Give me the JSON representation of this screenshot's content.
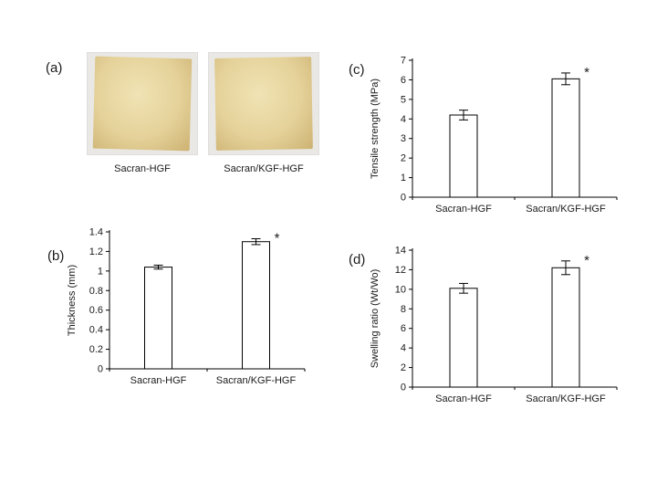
{
  "panels": {
    "a": {
      "label": "(a)",
      "photos": [
        {
          "caption": "Sacran-HGF"
        },
        {
          "caption": "Sacran/KGF-HGF"
        }
      ]
    },
    "b": {
      "label": "(b)"
    },
    "c": {
      "label": "(c)"
    },
    "d": {
      "label": "(d)"
    }
  },
  "colors": {
    "bar_fill": "#ffffff",
    "bar_stroke": "#000000",
    "axis": "#000000",
    "text": "#1a1a1a",
    "photo_background": "#e9e8e5",
    "film_highlight": "#f0e3b4",
    "film_mid": "#e5d29a",
    "film_edge": "#cdb272"
  },
  "chart_data": [
    {
      "id": "b",
      "type": "bar",
      "title": "",
      "categories": [
        "Sacran-HGF",
        "Sacran/KGF-HGF"
      ],
      "values": [
        1.04,
        1.3
      ],
      "errors": [
        0.02,
        0.03
      ],
      "significance": [
        "",
        "*"
      ],
      "xlabel": "",
      "ylabel": "Thickness (mm)",
      "ylim": [
        0,
        1.4
      ],
      "ytick_step": 0.2,
      "grid": false,
      "legend": "none"
    },
    {
      "id": "c",
      "type": "bar",
      "title": "",
      "categories": [
        "Sacran-HGF",
        "Sacran/KGF-HGF"
      ],
      "values": [
        4.2,
        6.05
      ],
      "errors": [
        0.25,
        0.3
      ],
      "significance": [
        "",
        "*"
      ],
      "xlabel": "",
      "ylabel": "Tensile strength (MPa)",
      "ylim": [
        0,
        7
      ],
      "ytick_step": 1,
      "grid": false,
      "legend": "none"
    },
    {
      "id": "d",
      "type": "bar",
      "title": "",
      "categories": [
        "Sacran-HGF",
        "Sacran/KGF-HGF"
      ],
      "values": [
        10.1,
        12.2
      ],
      "errors": [
        0.5,
        0.7
      ],
      "significance": [
        "",
        "*"
      ],
      "xlabel": "",
      "ylabel": "Swelling ratio (Wt/Wo)",
      "ylim": [
        0,
        14
      ],
      "ytick_step": 2,
      "grid": false,
      "legend": "none"
    }
  ]
}
